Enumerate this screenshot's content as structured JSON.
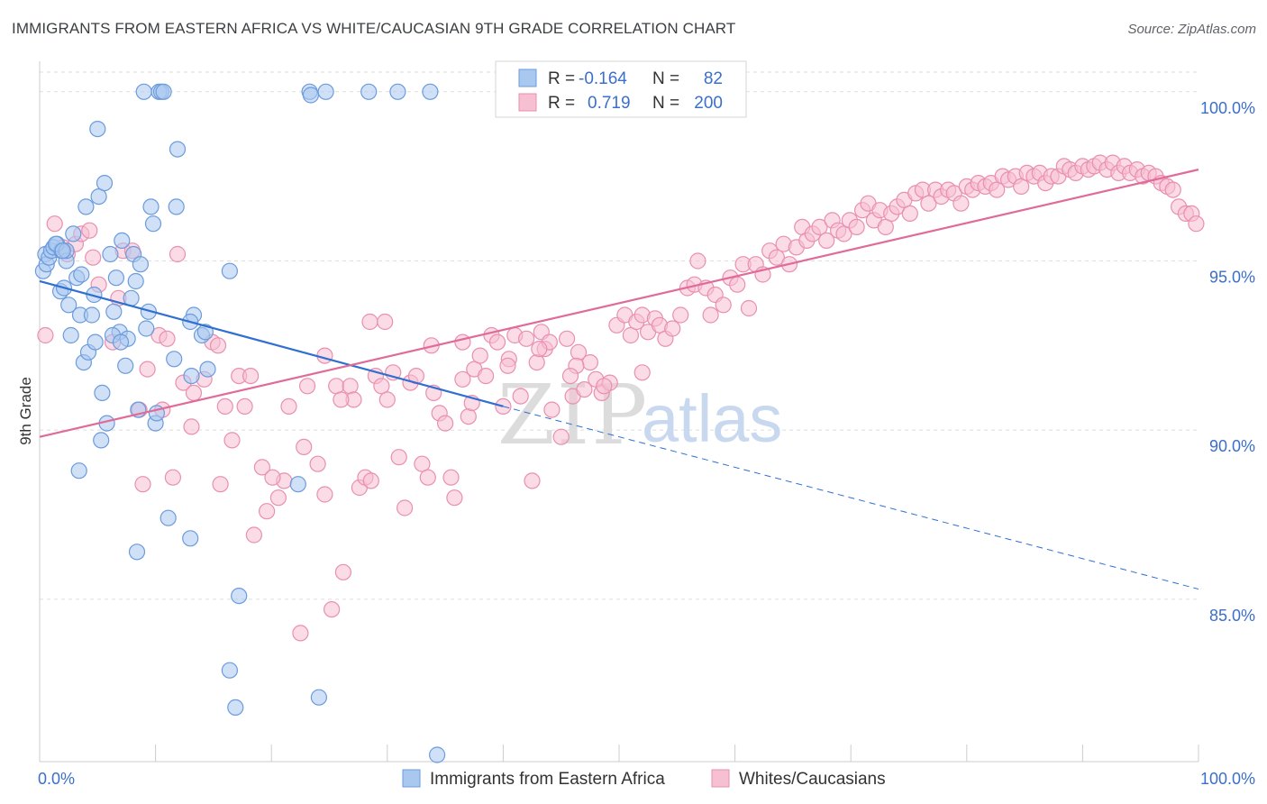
{
  "header": {
    "title": "IMMIGRANTS FROM EASTERN AFRICA VS WHITE/CAUCASIAN 9TH GRADE CORRELATION CHART",
    "source": "Source: ZipAtlas.com"
  },
  "watermark": {
    "zip": "ZIP",
    "atlas": "atlas"
  },
  "legend_box": {
    "rows": [
      {
        "r_label": "R =",
        "r_value": "-0.164",
        "n_label": "N =",
        "n_value": "82"
      },
      {
        "r_label": "R =",
        "r_value": "0.719",
        "n_label": "N =",
        "n_value": "200"
      }
    ]
  },
  "colors": {
    "blue_fill": "#a9c8f0",
    "blue_stroke": "#6b9bdc",
    "blue_line": "#2f6fd1",
    "pink_fill": "#f7bfd2",
    "pink_stroke": "#e98fb0",
    "pink_line": "#e06b98",
    "tick_text": "#3b6fc9",
    "grid": "#dddddd"
  },
  "chart_data": {
    "type": "scatter",
    "title": "IMMIGRANTS FROM EASTERN AFRICA VS WHITE/CAUCASIAN 9TH GRADE CORRELATION CHART",
    "xlabel": "",
    "ylabel": "9th Grade",
    "xlim": [
      0,
      100
    ],
    "ylim": [
      80.2,
      100.9
    ],
    "x_tick_labels": [
      "0.0%",
      "100.0%"
    ],
    "y_ticks": [
      85,
      90,
      95,
      100
    ],
    "y_tick_labels": [
      "85.0%",
      "90.0%",
      "95.0%",
      "100.0%"
    ],
    "grid": "horizontal dashed",
    "legend_placement": "bottom-center",
    "series": [
      {
        "name": "Immigrants from Eastern Africa",
        "color": "#a9c8f0",
        "R": -0.164,
        "N": 82,
        "trend": {
          "x": [
            0,
            40
          ],
          "y": [
            94.4,
            90.7
          ],
          "dashed_extension": {
            "x": [
              40,
              100
            ],
            "y": [
              90.7,
              85.3
            ]
          }
        },
        "points": [
          [
            0.3,
            94.7
          ],
          [
            0.5,
            95.2
          ],
          [
            0.6,
            94.9
          ],
          [
            0.8,
            95.1
          ],
          [
            1.0,
            95.3
          ],
          [
            1.2,
            95.4
          ],
          [
            1.5,
            95.5
          ],
          [
            1.8,
            94.1
          ],
          [
            1.9,
            95.3
          ],
          [
            2.1,
            94.2
          ],
          [
            2.3,
            95.0
          ],
          [
            2.5,
            93.7
          ],
          [
            2.7,
            92.8
          ],
          [
            2.9,
            95.8
          ],
          [
            3.2,
            94.5
          ],
          [
            3.5,
            93.4
          ],
          [
            3.6,
            94.6
          ],
          [
            3.8,
            92.0
          ],
          [
            4.0,
            96.6
          ],
          [
            4.2,
            92.3
          ],
          [
            4.5,
            93.4
          ],
          [
            4.7,
            94.0
          ],
          [
            4.8,
            92.6
          ],
          [
            5.1,
            96.9
          ],
          [
            5.3,
            89.7
          ],
          [
            5.4,
            91.1
          ],
          [
            5.6,
            97.3
          ],
          [
            5.8,
            90.2
          ],
          [
            6.1,
            95.2
          ],
          [
            6.4,
            93.5
          ],
          [
            6.6,
            94.5
          ],
          [
            6.9,
            92.9
          ],
          [
            7.1,
            95.6
          ],
          [
            7.4,
            91.9
          ],
          [
            7.6,
            92.7
          ],
          [
            7.9,
            93.9
          ],
          [
            8.1,
            95.2
          ],
          [
            8.3,
            94.4
          ],
          [
            8.5,
            90.6
          ],
          [
            8.7,
            94.9
          ],
          [
            9.0,
            100.0
          ],
          [
            9.4,
            93.5
          ],
          [
            9.6,
            96.6
          ],
          [
            9.8,
            96.1
          ],
          [
            10.0,
            90.2
          ],
          [
            10.3,
            100.0
          ],
          [
            10.5,
            100.0
          ],
          [
            10.7,
            100.0
          ],
          [
            11.1,
            87.4
          ],
          [
            11.6,
            92.1
          ],
          [
            11.8,
            96.6
          ],
          [
            11.9,
            98.3
          ],
          [
            13.0,
            86.8
          ],
          [
            13.1,
            91.6
          ],
          [
            13.3,
            93.4
          ],
          [
            14.0,
            92.8
          ],
          [
            14.3,
            92.9
          ],
          [
            16.4,
            82.9
          ],
          [
            16.9,
            81.8
          ],
          [
            17.2,
            85.1
          ],
          [
            22.3,
            88.4
          ],
          [
            23.3,
            100.0
          ],
          [
            23.4,
            99.9
          ],
          [
            24.1,
            82.1
          ],
          [
            24.7,
            100.0
          ],
          [
            28.4,
            100.0
          ],
          [
            30.9,
            100.0
          ],
          [
            33.7,
            100.0
          ],
          [
            34.3,
            80.4
          ],
          [
            3.4,
            88.8
          ],
          [
            5.0,
            98.9
          ],
          [
            8.4,
            86.4
          ],
          [
            9.2,
            93.0
          ],
          [
            13.0,
            93.2
          ],
          [
            14.5,
            91.8
          ],
          [
            6.3,
            92.8
          ],
          [
            1.4,
            95.5
          ],
          [
            2.3,
            95.3
          ],
          [
            7.0,
            92.6
          ],
          [
            10.1,
            90.5
          ],
          [
            16.4,
            94.7
          ],
          [
            2.0,
            95.3
          ]
        ]
      },
      {
        "name": "Whites/Caucasians",
        "color": "#f7bfd2",
        "R": 0.719,
        "N": 200,
        "trend": {
          "x": [
            0,
            100
          ],
          "y": [
            89.8,
            97.7
          ]
        },
        "points": [
          [
            0.5,
            92.8
          ],
          [
            1.3,
            96.1
          ],
          [
            2.0,
            95.4
          ],
          [
            2.4,
            95.2
          ],
          [
            3.1,
            95.5
          ],
          [
            3.6,
            95.8
          ],
          [
            4.3,
            95.9
          ],
          [
            4.6,
            95.1
          ],
          [
            5.1,
            94.3
          ],
          [
            6.3,
            92.6
          ],
          [
            6.8,
            93.9
          ],
          [
            7.2,
            95.3
          ],
          [
            8.0,
            95.3
          ],
          [
            8.6,
            90.6
          ],
          [
            8.9,
            88.4
          ],
          [
            9.3,
            91.8
          ],
          [
            10.3,
            92.8
          ],
          [
            10.6,
            90.6
          ],
          [
            11.0,
            92.7
          ],
          [
            11.5,
            88.6
          ],
          [
            11.9,
            95.2
          ],
          [
            12.4,
            91.4
          ],
          [
            13.1,
            90.1
          ],
          [
            13.3,
            91.1
          ],
          [
            14.2,
            91.5
          ],
          [
            14.9,
            92.6
          ],
          [
            15.6,
            88.4
          ],
          [
            16.0,
            90.7
          ],
          [
            16.6,
            89.7
          ],
          [
            17.2,
            91.6
          ],
          [
            17.7,
            90.7
          ],
          [
            18.5,
            86.9
          ],
          [
            19.2,
            88.9
          ],
          [
            19.6,
            87.6
          ],
          [
            20.6,
            88.0
          ],
          [
            21.1,
            88.5
          ],
          [
            21.5,
            90.7
          ],
          [
            22.5,
            84.0
          ],
          [
            23.1,
            91.3
          ],
          [
            24.0,
            89.0
          ],
          [
            24.6,
            88.1
          ],
          [
            25.2,
            84.7
          ],
          [
            25.6,
            91.3
          ],
          [
            26.2,
            85.8
          ],
          [
            26.8,
            91.3
          ],
          [
            27.1,
            90.9
          ],
          [
            27.6,
            88.3
          ],
          [
            28.1,
            88.6
          ],
          [
            28.6,
            88.5
          ],
          [
            29.0,
            91.6
          ],
          [
            29.5,
            91.3
          ],
          [
            29.8,
            93.2
          ],
          [
            30.5,
            91.7
          ],
          [
            31.0,
            89.2
          ],
          [
            31.5,
            87.7
          ],
          [
            32.0,
            91.4
          ],
          [
            32.5,
            91.6
          ],
          [
            33.0,
            89.0
          ],
          [
            33.5,
            88.6
          ],
          [
            34.0,
            91.1
          ],
          [
            34.5,
            90.5
          ],
          [
            35.0,
            90.2
          ],
          [
            35.5,
            88.6
          ],
          [
            35.8,
            88.0
          ],
          [
            36.5,
            91.5
          ],
          [
            37.0,
            90.4
          ],
          [
            37.5,
            91.8
          ],
          [
            38.0,
            92.2
          ],
          [
            38.5,
            91.6
          ],
          [
            39.0,
            92.8
          ],
          [
            39.5,
            92.6
          ],
          [
            40.0,
            90.7
          ],
          [
            40.5,
            92.1
          ],
          [
            41.0,
            92.8
          ],
          [
            41.5,
            91.0
          ],
          [
            42.0,
            92.7
          ],
          [
            42.5,
            88.5
          ],
          [
            42.9,
            92.0
          ],
          [
            43.3,
            92.9
          ],
          [
            43.6,
            92.4
          ],
          [
            44.0,
            92.6
          ],
          [
            45.0,
            89.8
          ],
          [
            45.5,
            92.7
          ],
          [
            46.0,
            91.0
          ],
          [
            46.5,
            92.3
          ],
          [
            47.0,
            91.2
          ],
          [
            47.5,
            92.0
          ],
          [
            48.0,
            91.5
          ],
          [
            48.5,
            91.1
          ],
          [
            49.2,
            91.4
          ],
          [
            49.8,
            93.1
          ],
          [
            50.5,
            93.4
          ],
          [
            51.0,
            92.8
          ],
          [
            51.5,
            93.2
          ],
          [
            52.0,
            93.4
          ],
          [
            52.5,
            92.9
          ],
          [
            53.1,
            93.3
          ],
          [
            53.5,
            93.1
          ],
          [
            54.0,
            92.7
          ],
          [
            54.6,
            93.0
          ],
          [
            55.3,
            93.4
          ],
          [
            55.9,
            94.2
          ],
          [
            56.5,
            94.3
          ],
          [
            56.8,
            95.0
          ],
          [
            57.5,
            94.2
          ],
          [
            57.9,
            93.4
          ],
          [
            58.3,
            94.0
          ],
          [
            59.0,
            93.7
          ],
          [
            59.6,
            94.5
          ],
          [
            60.2,
            94.3
          ],
          [
            60.7,
            94.9
          ],
          [
            61.2,
            93.6
          ],
          [
            61.8,
            94.9
          ],
          [
            62.4,
            94.6
          ],
          [
            63.0,
            95.3
          ],
          [
            63.6,
            95.1
          ],
          [
            64.2,
            95.5
          ],
          [
            64.7,
            94.9
          ],
          [
            65.3,
            95.4
          ],
          [
            65.8,
            96.0
          ],
          [
            66.2,
            95.6
          ],
          [
            66.7,
            95.8
          ],
          [
            67.3,
            96.0
          ],
          [
            67.9,
            95.6
          ],
          [
            68.4,
            96.2
          ],
          [
            68.9,
            95.9
          ],
          [
            69.4,
            95.8
          ],
          [
            69.9,
            96.2
          ],
          [
            70.5,
            96.0
          ],
          [
            71.0,
            96.5
          ],
          [
            71.5,
            96.7
          ],
          [
            72.0,
            96.2
          ],
          [
            72.5,
            96.5
          ],
          [
            73.0,
            96.0
          ],
          [
            73.5,
            96.4
          ],
          [
            74.0,
            96.6
          ],
          [
            74.6,
            96.8
          ],
          [
            75.1,
            96.4
          ],
          [
            75.6,
            97.0
          ],
          [
            76.2,
            97.1
          ],
          [
            76.7,
            96.7
          ],
          [
            77.3,
            97.1
          ],
          [
            77.8,
            96.9
          ],
          [
            78.4,
            97.1
          ],
          [
            78.9,
            97.0
          ],
          [
            79.5,
            96.7
          ],
          [
            80.0,
            97.2
          ],
          [
            80.5,
            97.1
          ],
          [
            81.0,
            97.3
          ],
          [
            81.6,
            97.2
          ],
          [
            82.1,
            97.3
          ],
          [
            82.6,
            97.1
          ],
          [
            83.1,
            97.5
          ],
          [
            83.6,
            97.4
          ],
          [
            84.2,
            97.5
          ],
          [
            84.7,
            97.2
          ],
          [
            85.2,
            97.6
          ],
          [
            85.8,
            97.5
          ],
          [
            86.3,
            97.6
          ],
          [
            86.8,
            97.3
          ],
          [
            87.3,
            97.5
          ],
          [
            87.9,
            97.5
          ],
          [
            88.4,
            97.8
          ],
          [
            88.9,
            97.7
          ],
          [
            89.4,
            97.6
          ],
          [
            90.0,
            97.8
          ],
          [
            90.5,
            97.7
          ],
          [
            91.0,
            97.8
          ],
          [
            91.5,
            97.9
          ],
          [
            92.1,
            97.7
          ],
          [
            92.6,
            97.9
          ],
          [
            93.1,
            97.6
          ],
          [
            93.6,
            97.8
          ],
          [
            94.1,
            97.6
          ],
          [
            94.7,
            97.7
          ],
          [
            95.2,
            97.5
          ],
          [
            95.7,
            97.6
          ],
          [
            96.3,
            97.5
          ],
          [
            96.8,
            97.3
          ],
          [
            97.3,
            97.2
          ],
          [
            97.8,
            97.1
          ],
          [
            98.3,
            96.6
          ],
          [
            98.9,
            96.4
          ],
          [
            99.4,
            96.4
          ],
          [
            99.8,
            96.1
          ],
          [
            28.5,
            93.2
          ],
          [
            24.6,
            92.2
          ],
          [
            18.2,
            91.6
          ],
          [
            15.4,
            92.5
          ],
          [
            26.0,
            90.9
          ],
          [
            33.8,
            92.5
          ],
          [
            36.5,
            92.6
          ],
          [
            46.3,
            91.9
          ],
          [
            52.0,
            91.7
          ],
          [
            44.2,
            90.6
          ],
          [
            40.4,
            91.9
          ],
          [
            30.0,
            90.9
          ],
          [
            22.8,
            89.5
          ],
          [
            20.1,
            88.6
          ],
          [
            37.3,
            90.8
          ],
          [
            43.1,
            92.4
          ],
          [
            45.8,
            91.6
          ],
          [
            48.7,
            91.3
          ]
        ]
      }
    ]
  },
  "bottom_legend": {
    "items": [
      {
        "label": "Immigrants from Eastern Africa"
      },
      {
        "label": "Whites/Caucasians"
      }
    ]
  }
}
